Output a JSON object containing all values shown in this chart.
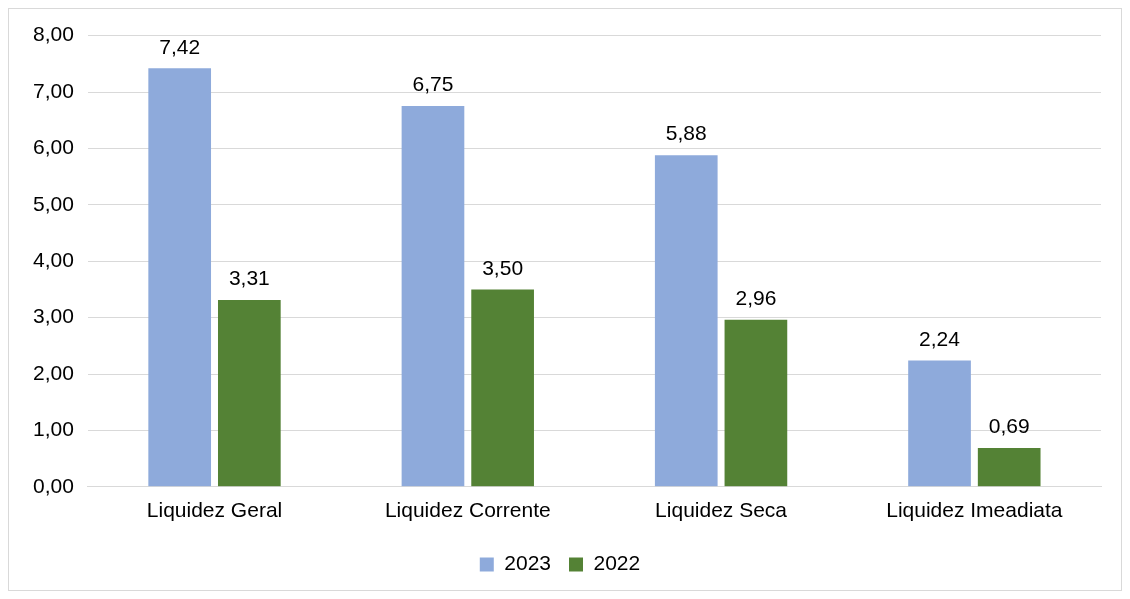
{
  "chart_data": {
    "type": "bar",
    "categories": [
      "Liquidez Geral",
      "Liquidez Corrente",
      "Liquidez Seca",
      "Liquidez Imeadiata"
    ],
    "series": [
      {
        "name": "2023",
        "color": "#8eaadb",
        "values": [
          7.42,
          6.75,
          5.88,
          2.24
        ],
        "value_labels": [
          "7,42",
          "6,75",
          "5,88",
          "2,24"
        ]
      },
      {
        "name": "2022",
        "color": "#548235",
        "values": [
          3.31,
          3.5,
          2.96,
          0.69
        ],
        "value_labels": [
          "3,31",
          "3,50",
          "2,96",
          "0,69"
        ]
      }
    ],
    "ylim": [
      0,
      8
    ],
    "yticks": [
      {
        "value": 0,
        "label": "0,00"
      },
      {
        "value": 1,
        "label": "1,00"
      },
      {
        "value": 2,
        "label": "2,00"
      },
      {
        "value": 3,
        "label": "3,00"
      },
      {
        "value": 4,
        "label": "4,00"
      },
      {
        "value": 5,
        "label": "5,00"
      },
      {
        "value": 6,
        "label": "6,00"
      },
      {
        "value": 7,
        "label": "7,00"
      },
      {
        "value": 8,
        "label": "8,00"
      }
    ],
    "grid": "y",
    "legend": "bottom"
  }
}
